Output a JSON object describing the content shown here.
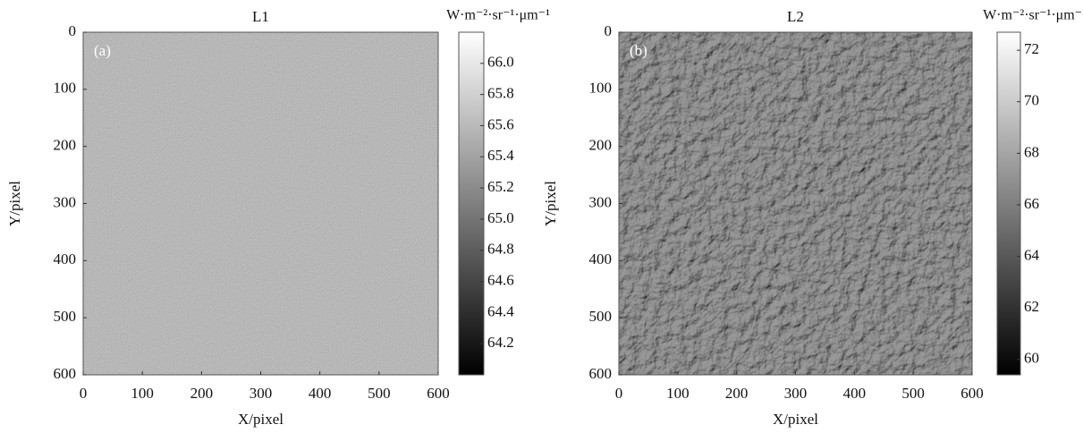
{
  "chart_data": [
    {
      "type": "image",
      "title": "L1",
      "panel_label": "(a)",
      "xlabel": "X/pixel",
      "ylabel": "Y/pixel",
      "xlim": [
        0,
        600
      ],
      "ylim": [
        0,
        600
      ],
      "y_inverted": true,
      "xticks": [
        0,
        100,
        200,
        300,
        400,
        500,
        600
      ],
      "yticks": [
        0,
        100,
        200,
        300,
        400,
        500,
        600
      ],
      "colorbar": {
        "label": "W·m⁻²·sr⁻¹·μm⁻¹",
        "colormap": "gray",
        "lim": [
          64.0,
          66.2
        ],
        "ticks": [
          64.2,
          64.4,
          64.6,
          64.8,
          {
            "value": 65,
            "label": "65.0"
          },
          65.2,
          65.4,
          65.6,
          65.8,
          {
            "value": 66,
            "label": "66.0"
          }
        ]
      }
    },
    {
      "type": "image",
      "title": "L2",
      "panel_label": "(b)",
      "xlabel": "X/pixel",
      "ylabel": "Y/pixel",
      "xlim": [
        0,
        600
      ],
      "ylim": [
        0,
        600
      ],
      "y_inverted": true,
      "xticks": [
        0,
        100,
        200,
        300,
        400,
        500,
        600
      ],
      "yticks": [
        0,
        100,
        200,
        300,
        400,
        500,
        600
      ],
      "colorbar": {
        "label": "W·m⁻²·sr⁻¹·μm⁻¹",
        "colormap": "gray",
        "lim": [
          59.4,
          72.7
        ],
        "ticks": [
          60,
          62,
          64,
          66,
          68,
          70,
          72
        ]
      }
    }
  ]
}
